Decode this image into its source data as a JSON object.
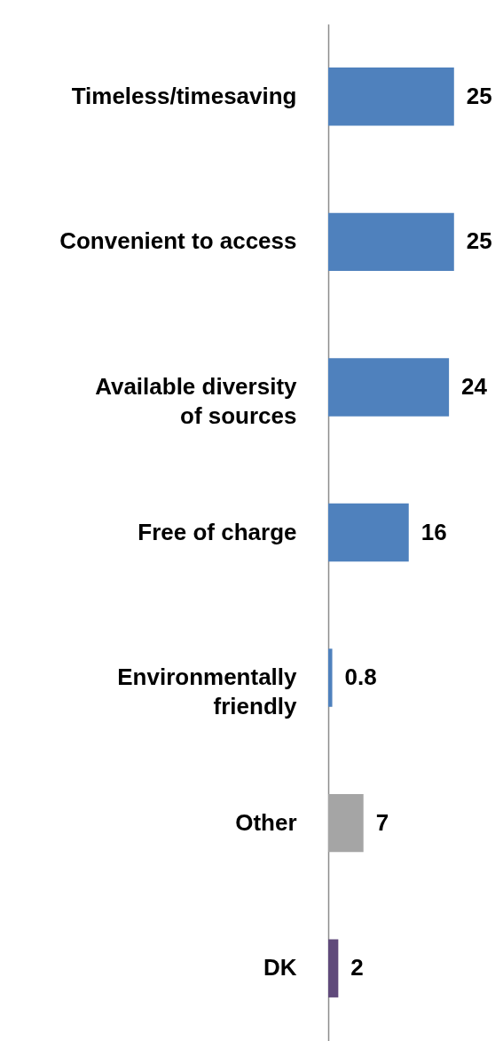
{
  "chart_data": {
    "type": "bar",
    "orientation": "horizontal",
    "data_labels": true,
    "categories": [
      "Timeless/timesaving",
      "Convenient to access",
      "Available diversity of sources",
      "Free of charge",
      "Environmentally friendly",
      "Other",
      "DK"
    ],
    "values": [
      25,
      25,
      24,
      16,
      0.8,
      7,
      2
    ],
    "colors": [
      "#4f81bd",
      "#4f81bd",
      "#4f81bd",
      "#4f81bd",
      "#4f81bd",
      "#a5a5a5",
      "#604a7b"
    ]
  }
}
